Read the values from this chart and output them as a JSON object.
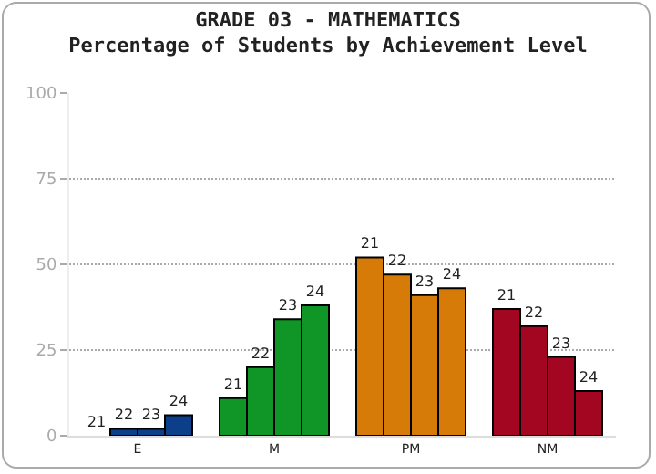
{
  "chart_data": {
    "type": "bar",
    "title": "GRADE 03 - MATHEMATICS",
    "subtitle": "Percentage of Students by Achievement Level",
    "categories": [
      "E",
      "M",
      "PM",
      "NM"
    ],
    "series": [
      {
        "name": "21",
        "colors": [
          "#0b3f8a",
          "#0f9626",
          "#d77b08",
          "#a30620"
        ],
        "values": [
          0,
          11,
          52,
          37
        ]
      },
      {
        "name": "22",
        "colors": [
          "#0b3f8a",
          "#0f9626",
          "#d77b08",
          "#a30620"
        ],
        "values": [
          2,
          20,
          47,
          32
        ]
      },
      {
        "name": "23",
        "colors": [
          "#0b3f8a",
          "#0f9626",
          "#d77b08",
          "#a30620"
        ],
        "values": [
          2,
          34,
          41,
          23
        ]
      },
      {
        "name": "24",
        "colors": [
          "#0b3f8a",
          "#0f9626",
          "#d77b08",
          "#a30620"
        ],
        "values": [
          6,
          38,
          43,
          13
        ]
      }
    ],
    "ylim": [
      0,
      100
    ],
    "yticks": [
      0,
      25,
      50,
      75,
      100
    ],
    "grid": "y",
    "legend": false
  }
}
